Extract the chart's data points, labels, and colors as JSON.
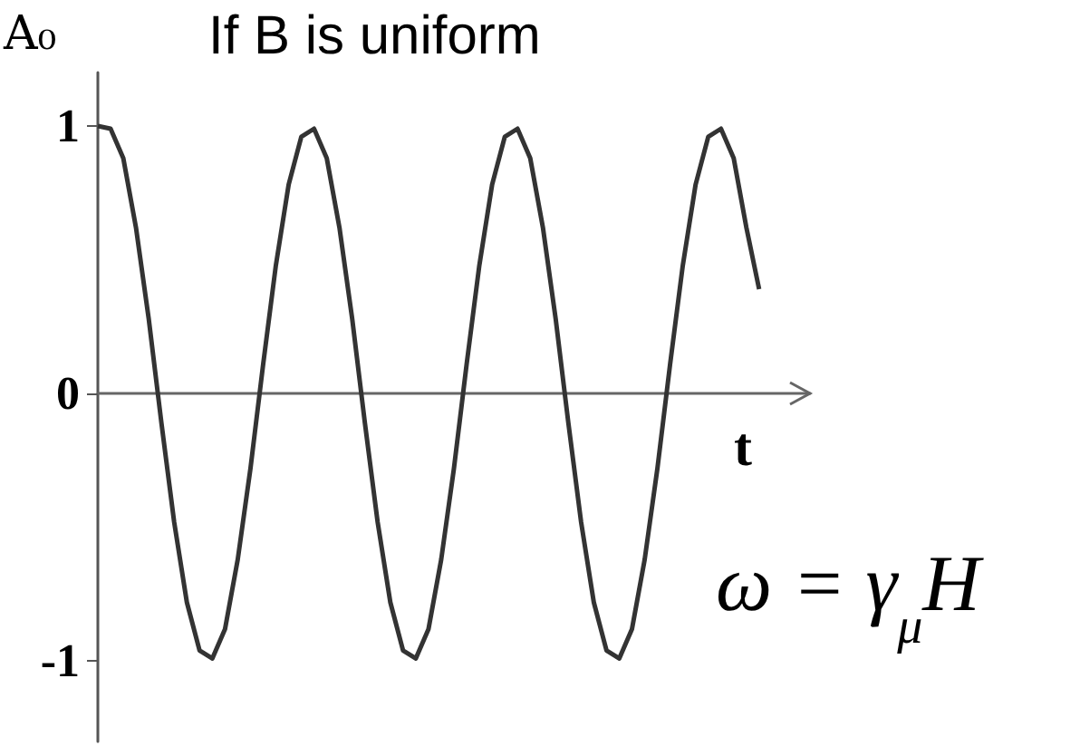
{
  "chart_data": {
    "type": "line",
    "title": "If B is uniform",
    "ylabel": "A₀",
    "xlabel": "t",
    "annotations": [
      "ω = γ$_{μ}$H"
    ],
    "categories": [
      null,
      null,
      null,
      null,
      null,
      null,
      null,
      null,
      null,
      null,
      null,
      null,
      null,
      null,
      null,
      null,
      null,
      null,
      null,
      null,
      null,
      null,
      null,
      null,
      null,
      null,
      null,
      null,
      null,
      null,
      null,
      null,
      null,
      null,
      null,
      null,
      null,
      null,
      null,
      null,
      null,
      null,
      null,
      null,
      null,
      null,
      null,
      null,
      null,
      null,
      null,
      null,
      null,
      null,
      null,
      null,
      null
    ],
    "series": [
      {
        "color": "#333333",
        "values": [
          1,
          0.99,
          0.88,
          0.62,
          0.28,
          -0.11,
          -0.48,
          -0.78,
          -0.96,
          -0.99,
          -0.88,
          -0.62,
          -0.28,
          0.11,
          0.48,
          0.78,
          0.96,
          0.99,
          0.88,
          0.62,
          0.28,
          -0.11,
          -0.48,
          -0.78,
          -0.96,
          -0.99,
          -0.88,
          -0.62,
          -0.28,
          0.11,
          0.48,
          0.78,
          0.96,
          0.99,
          0.88,
          0.62,
          0.28,
          -0.11,
          -0.48,
          -0.78,
          -0.96,
          -0.99,
          -0.88,
          -0.62,
          -0.28,
          0.11,
          0.48,
          0.78,
          0.96,
          0.99,
          0.88,
          0.62,
          0.39,
          null,
          null,
          null,
          null
        ]
      }
    ],
    "ylim": [
      -1.3,
      1.2
    ],
    "yticks": [
      -1,
      0,
      1
    ],
    "marker": "none",
    "line_style": "solid"
  }
}
